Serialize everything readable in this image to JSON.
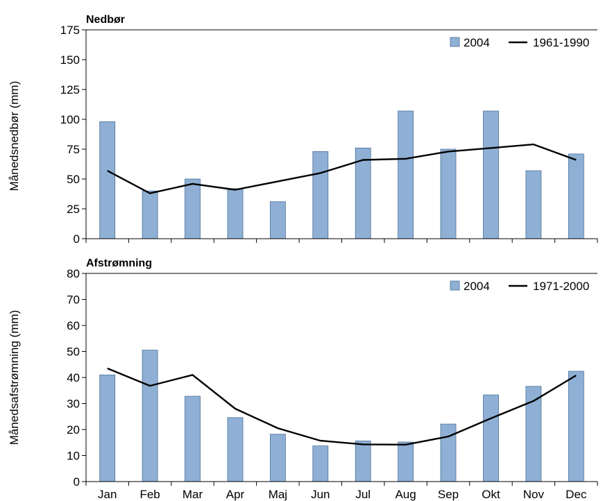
{
  "chart_data": [
    {
      "type": "bar",
      "title": "Nedbør",
      "ylabel": "Månedsnedbør (mm)",
      "xlabel": "",
      "ylim": [
        0,
        175
      ],
      "yticks": [
        0,
        25,
        50,
        75,
        100,
        125,
        150,
        175
      ],
      "categories": [
        "Jan",
        "Feb",
        "Mar",
        "Apr",
        "Maj",
        "Jun",
        "Jul",
        "Aug",
        "Sep",
        "Okt",
        "Nov",
        "Dec"
      ],
      "series": [
        {
          "name": "2004",
          "kind": "bar",
          "color": "#8fb0d4",
          "values": [
            98,
            40,
            50,
            42,
            31,
            73,
            76,
            107,
            75,
            107,
            57,
            71
          ]
        },
        {
          "name": "1961-1990",
          "kind": "line",
          "color": "#000000",
          "values": [
            57,
            38,
            46,
            41,
            48,
            55,
            66,
            67,
            73,
            76,
            79,
            66
          ]
        }
      ],
      "legend": "top-right",
      "grid": false
    },
    {
      "type": "bar",
      "title": "Afstrømning",
      "ylabel": "Månedsafstrømning (mm)",
      "xlabel": "",
      "ylim": [
        0,
        80
      ],
      "yticks": [
        0,
        10,
        20,
        30,
        40,
        50,
        60,
        70,
        80
      ],
      "categories": [
        "Jan",
        "Feb",
        "Mar",
        "Apr",
        "Maj",
        "Jun",
        "Jul",
        "Aug",
        "Sep",
        "Okt",
        "Nov",
        "Dec"
      ],
      "series": [
        {
          "name": "2004",
          "kind": "bar",
          "color": "#8fb0d4",
          "values": [
            41,
            50.5,
            32.8,
            24.6,
            18.2,
            13.7,
            15.6,
            15.2,
            22.1,
            33.3,
            36.6,
            42.4
          ]
        },
        {
          "name": "1971-2000",
          "kind": "line",
          "color": "#000000",
          "values": [
            43.5,
            36.8,
            41,
            28,
            20.5,
            15.7,
            14.3,
            14.2,
            17.3,
            24.3,
            31,
            40.8
          ]
        }
      ],
      "legend": "top-right",
      "grid": false
    }
  ]
}
